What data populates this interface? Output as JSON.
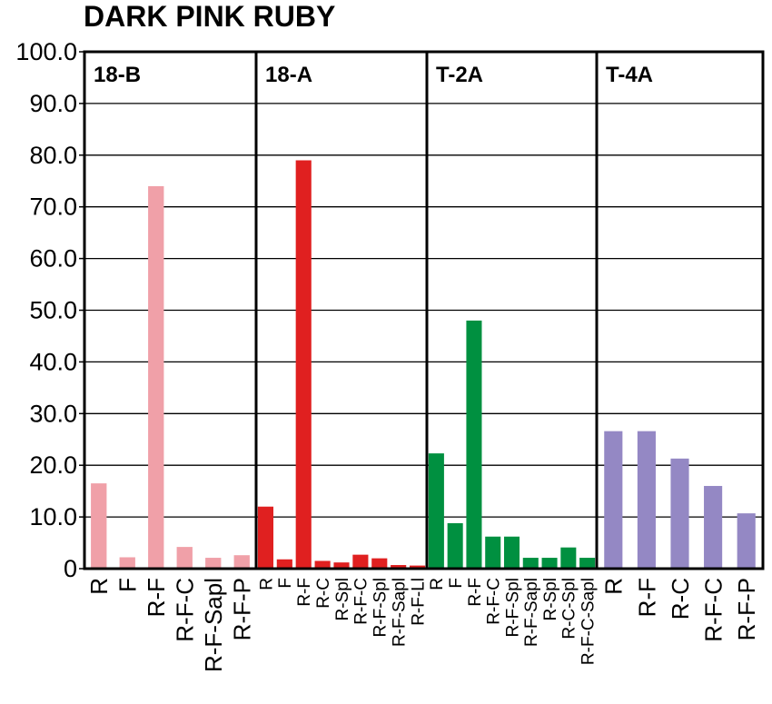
{
  "chart_data": {
    "type": "bar",
    "title": "DARK PINK RUBY",
    "xlabel": "",
    "ylabel": "",
    "ylim": [
      0,
      100
    ],
    "yticks": [
      "0",
      "10.0",
      "20.0",
      "30.0",
      "40.0",
      "50.0",
      "60.0",
      "70.0",
      "80.0",
      "90.0",
      "100.0"
    ],
    "grid": true,
    "panels": [
      {
        "label": "18-B",
        "color": "#F0A0A8",
        "categories": [
          "R",
          "F",
          "R-F",
          "R-F-C",
          "R-F-Sapl",
          "R-F-P"
        ],
        "values": [
          16.5,
          2.2,
          74.0,
          4.2,
          2.1,
          2.6
        ]
      },
      {
        "label": "18-A",
        "color": "#E02020",
        "categories": [
          "R",
          "F",
          "R-F",
          "R-C",
          "R-Spl",
          "R-F-C",
          "R-F-Spl",
          "R-F-Sapl",
          "R-F-Ll"
        ],
        "values": [
          12.0,
          1.8,
          79.0,
          1.5,
          1.2,
          2.7,
          2.0,
          0.7,
          0.6
        ]
      },
      {
        "label": "T-2A",
        "color": "#009040",
        "categories": [
          "R",
          "F",
          "R-F",
          "R-F-C",
          "R-F-Spl",
          "R-F-Sapl",
          "R-Spl",
          "R-C-Spl",
          "R-F-C-Sapl"
        ],
        "values": [
          22.3,
          8.8,
          48.0,
          6.2,
          6.2,
          2.1,
          2.1,
          4.1,
          2.1
        ]
      },
      {
        "label": "T-4A",
        "color": "#9488C4",
        "categories": [
          "R",
          "R-F",
          "R-C",
          "R-F-C",
          "R-F-P"
        ],
        "values": [
          26.6,
          26.6,
          21.3,
          16.0,
          10.7
        ]
      }
    ]
  }
}
